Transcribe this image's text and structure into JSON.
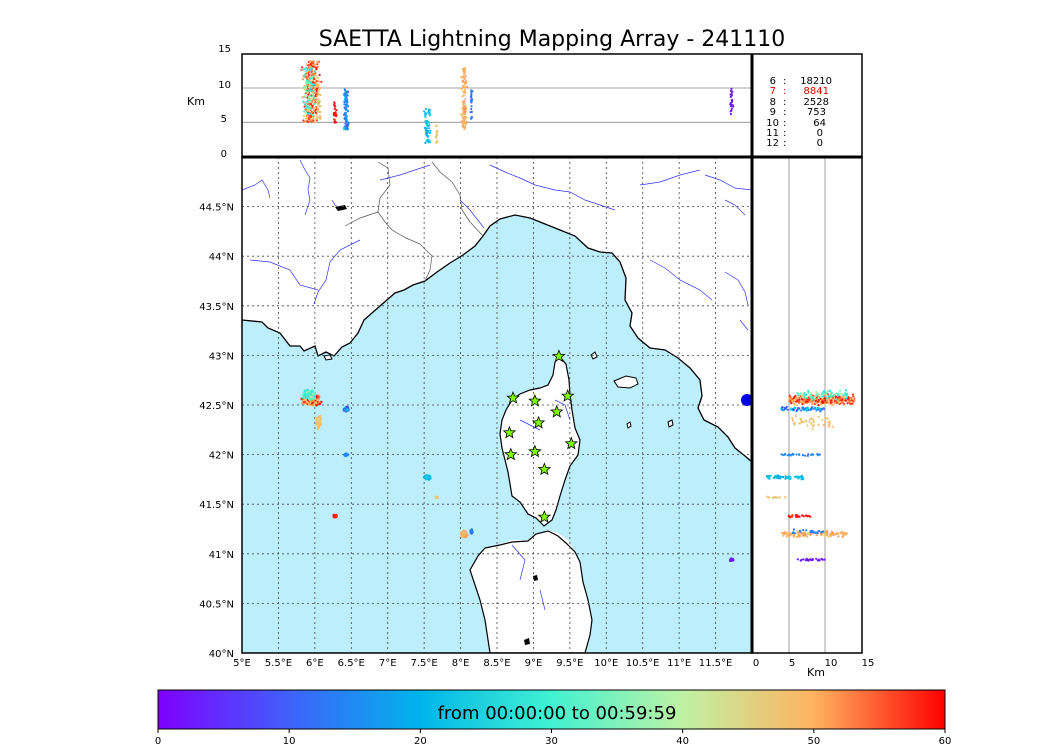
{
  "title": "SAETTA Lightning Mapping Array - 241110",
  "alt_panel": {
    "ylabel": "Km",
    "yticks": [
      "0",
      "5",
      "10",
      "15"
    ],
    "ylim": [
      0,
      15
    ]
  },
  "map_panel": {
    "lon_ticks": [
      "5°E",
      "5.5°E",
      "6°E",
      "6.5°E",
      "7°E",
      "7.5°E",
      "8°E",
      "8.5°E",
      "9°E",
      "9.5°E",
      "10°E",
      "10.5°E",
      "11°E",
      "11.5°E"
    ],
    "lat_ticks": [
      "40°N",
      "40.5°N",
      "41°N",
      "41.5°N",
      "42°N",
      "42.5°N",
      "43°N",
      "43.5°N",
      "44°N",
      "44.5°N"
    ],
    "xlim": [
      5,
      12
    ],
    "ylim": [
      40,
      45
    ],
    "sea_color": "#bdeefc",
    "grid": "dotted"
  },
  "side_panel": {
    "xlabel": "Km",
    "xticks": [
      "0",
      "5",
      "10",
      "15"
    ],
    "xlim": [
      0,
      15
    ]
  },
  "counts_table": [
    {
      "label": "6",
      "sep": ":",
      "value": "18210",
      "highlight": false
    },
    {
      "label": "7",
      "sep": ":",
      "value": "8841",
      "highlight": true
    },
    {
      "label": "8",
      "sep": ":",
      "value": "2528",
      "highlight": false
    },
    {
      "label": "9",
      "sep": ":",
      "value": "753",
      "highlight": false
    },
    {
      "label": "10",
      "sep": ":",
      "value": "64",
      "highlight": false
    },
    {
      "label": "11",
      "sep": ":",
      "value": "0",
      "highlight": false
    },
    {
      "label": "12",
      "sep": ":",
      "value": "0",
      "highlight": false
    }
  ],
  "colorbar": {
    "label": "from 00:00:00 to 00:59:59",
    "ticks": [
      "0",
      "10",
      "20",
      "30",
      "40",
      "50",
      "60"
    ],
    "range": [
      0,
      60
    ],
    "colormap": "rainbow",
    "colors": [
      "#7f00ff",
      "#3f61fa",
      "#00b5eb",
      "#41f2d1",
      "#bff2a4",
      "#ffb360",
      "#ff0000"
    ]
  },
  "chart_data": {
    "type": "scatter",
    "title": "SAETTA Lightning Mapping Array - 241110",
    "x_unit": "degrees longitude",
    "y_unit": "degrees latitude",
    "z_unit": "km altitude",
    "color_unit": "minutes",
    "stations": [
      {
        "lon": 9.35,
        "lat": 42.99
      },
      {
        "lon": 8.72,
        "lat": 42.57
      },
      {
        "lon": 9.02,
        "lat": 42.54
      },
      {
        "lon": 9.47,
        "lat": 42.59
      },
      {
        "lon": 9.32,
        "lat": 42.43
      },
      {
        "lon": 9.07,
        "lat": 42.32
      },
      {
        "lon": 8.67,
        "lat": 42.22
      },
      {
        "lon": 9.52,
        "lat": 42.11
      },
      {
        "lon": 8.69,
        "lat": 42.0
      },
      {
        "lon": 9.02,
        "lat": 42.03
      },
      {
        "lon": 9.15,
        "lat": 41.85
      },
      {
        "lon": 9.15,
        "lat": 41.37
      }
    ],
    "clusters": [
      {
        "lon": 5.95,
        "lat": 42.55,
        "lon_spread": 0.15,
        "lat_spread": 0.07,
        "alt_min": 5,
        "alt_max": 14,
        "t_min": 47,
        "t_max": 60,
        "n": 320
      },
      {
        "lon": 5.92,
        "lat": 42.6,
        "lon_spread": 0.12,
        "lat_spread": 0.06,
        "alt_min": 6,
        "alt_max": 13,
        "t_min": 25,
        "t_max": 42,
        "n": 90
      },
      {
        "lon": 6.05,
        "lat": 42.33,
        "lon_spread": 0.05,
        "lat_spread": 0.08,
        "alt_min": 5,
        "alt_max": 11,
        "t_min": 44,
        "t_max": 50,
        "n": 40
      },
      {
        "lon": 6.43,
        "lat": 42.46,
        "lon_spread": 0.04,
        "lat_spread": 0.03,
        "alt_min": 4,
        "alt_max": 10,
        "t_min": 5,
        "t_max": 28,
        "n": 70
      },
      {
        "lon": 6.43,
        "lat": 42.0,
        "lon_spread": 0.03,
        "lat_spread": 0.015,
        "alt_min": 4,
        "alt_max": 10,
        "t_min": 13,
        "t_max": 16,
        "n": 30
      },
      {
        "lon": 7.55,
        "lat": 41.77,
        "lon_spread": 0.07,
        "lat_spread": 0.03,
        "alt_min": 2,
        "alt_max": 7,
        "t_min": 18,
        "t_max": 24,
        "n": 60
      },
      {
        "lon": 7.67,
        "lat": 41.57,
        "lon_spread": 0.02,
        "lat_spread": 0.01,
        "alt_min": 2,
        "alt_max": 5,
        "t_min": 45,
        "t_max": 48,
        "n": 15
      },
      {
        "lon": 6.28,
        "lat": 41.38,
        "lon_spread": 0.04,
        "lat_spread": 0.015,
        "alt_min": 5,
        "alt_max": 8,
        "t_min": 57,
        "t_max": 60,
        "n": 25
      },
      {
        "lon": 8.05,
        "lat": 41.2,
        "lon_spread": 0.05,
        "lat_spread": 0.04,
        "alt_min": 4,
        "alt_max": 13,
        "t_min": 48,
        "t_max": 52,
        "n": 110
      },
      {
        "lon": 8.15,
        "lat": 41.22,
        "lon_spread": 0.02,
        "lat_spread": 0.03,
        "alt_min": 5,
        "alt_max": 10,
        "t_min": 12,
        "t_max": 15,
        "n": 25
      },
      {
        "lon": 11.72,
        "lat": 40.94,
        "lon_spread": 0.03,
        "lat_spread": 0.015,
        "alt_min": 6,
        "alt_max": 10,
        "t_min": 1,
        "t_max": 4,
        "n": 25
      }
    ]
  }
}
